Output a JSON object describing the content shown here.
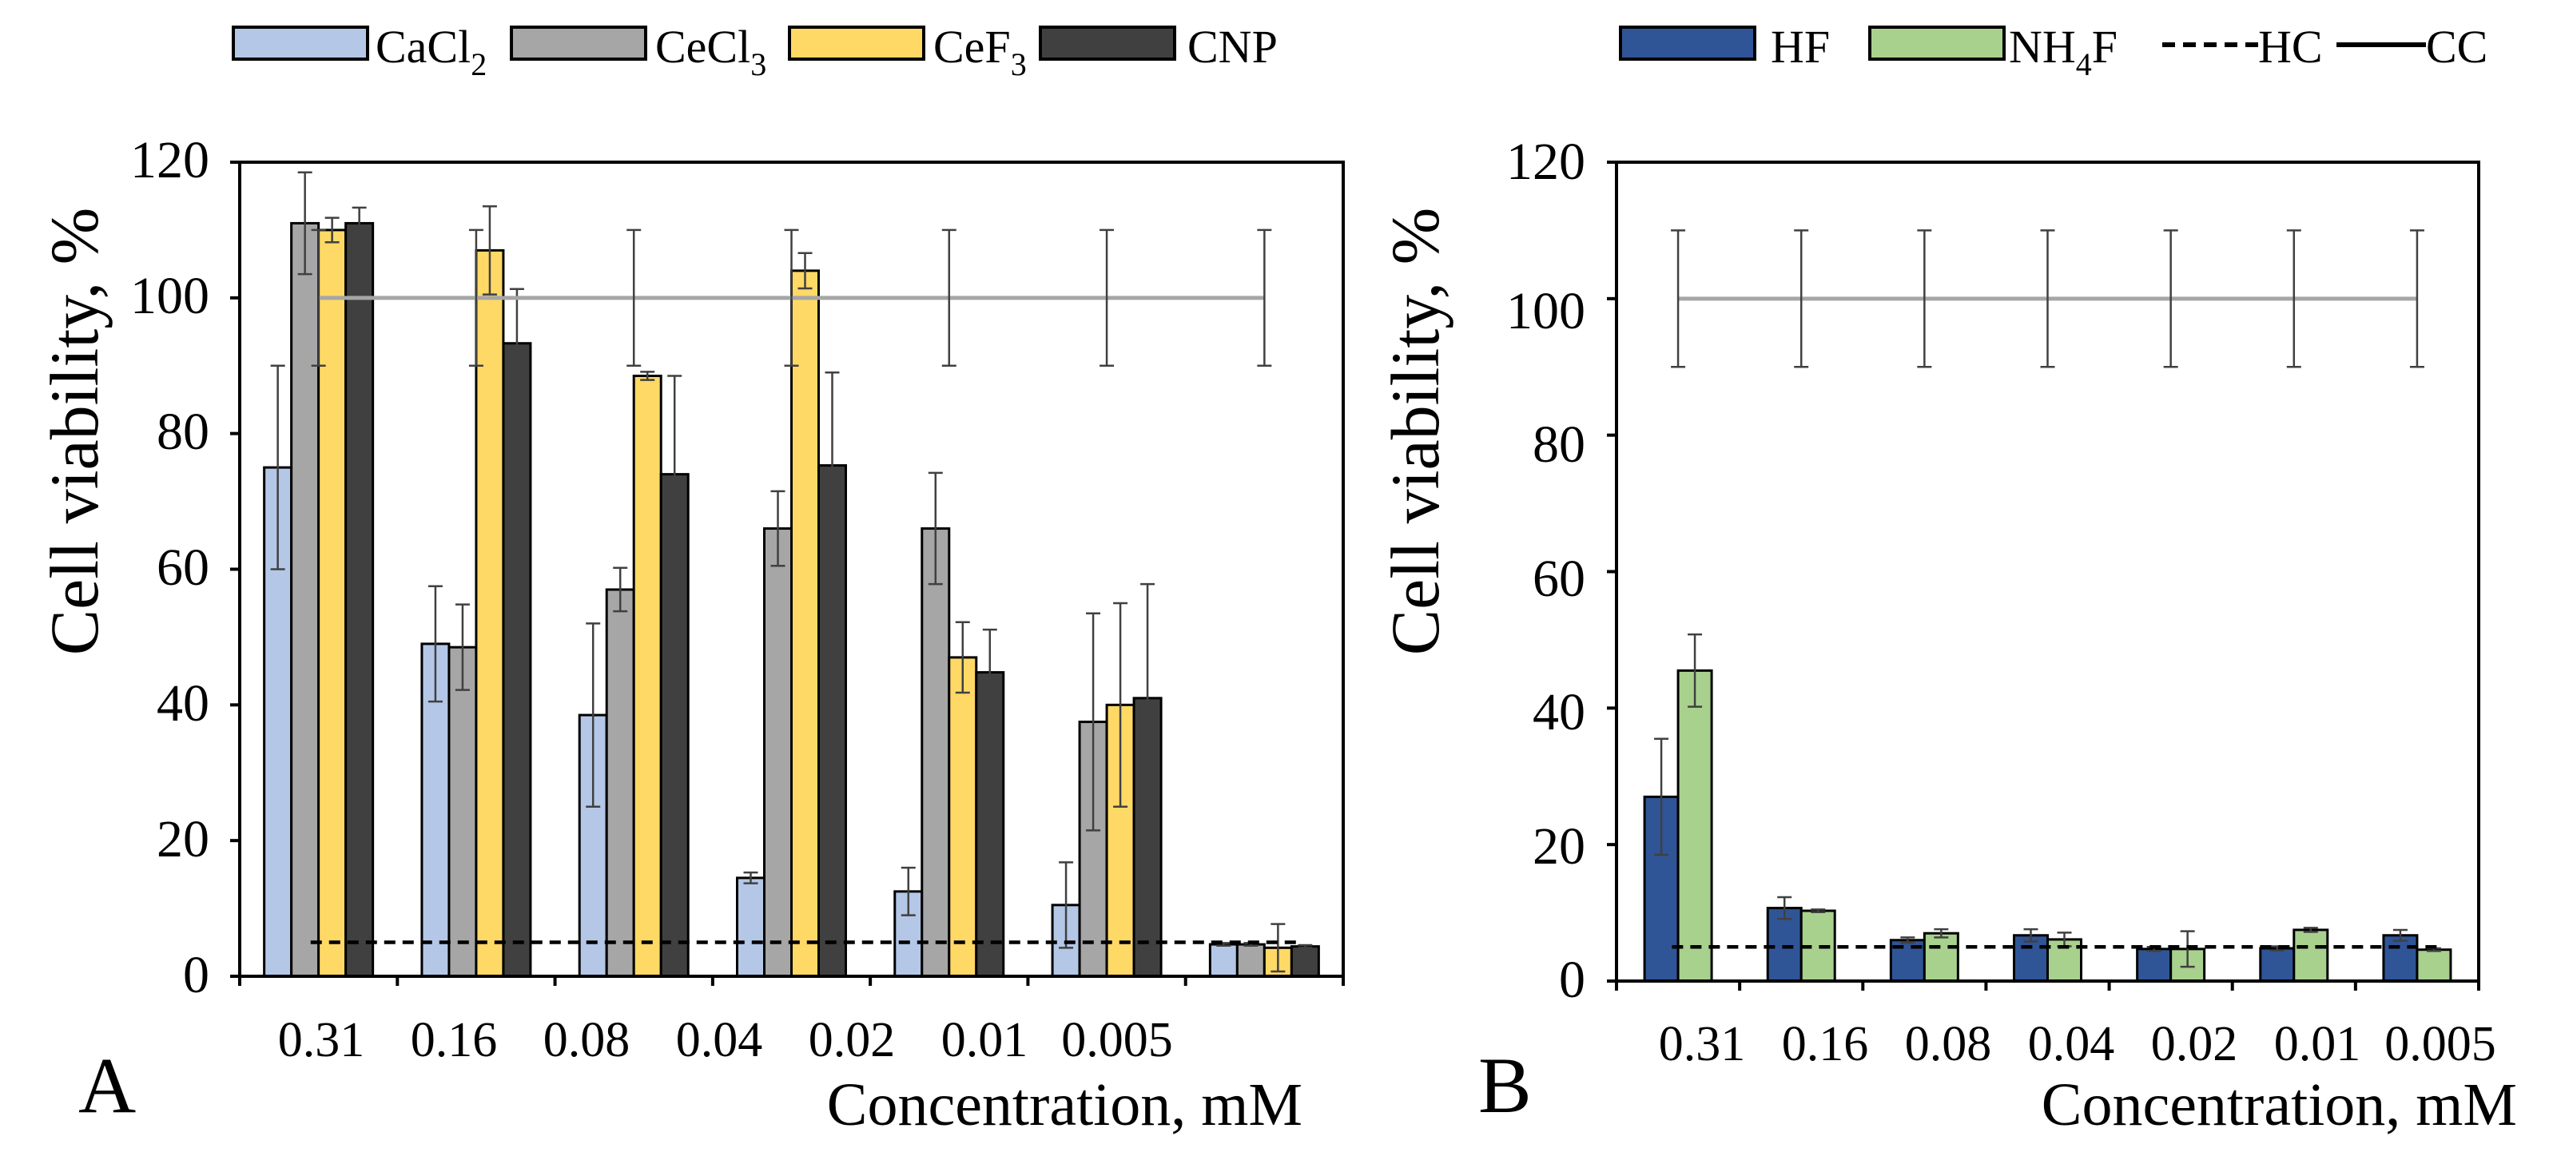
{
  "chart_data": [
    {
      "panel_label": "A",
      "type": "bar",
      "xlabel": "Concentration, mM",
      "ylabel": "Cell viability, %",
      "ylim": [
        0,
        120
      ],
      "yticks": [
        "0",
        "20",
        "40",
        "60",
        "80",
        "100",
        "120"
      ],
      "categories": [
        "0.31",
        "0.16",
        "0.08",
        "0.04",
        "0.02",
        "0.01",
        "0.005"
      ],
      "series": [
        {
          "name": "CaCl",
          "sub": "2",
          "color": "#b4c7e7",
          "values": [
            75,
            49,
            38.5,
            14.5,
            12.5,
            10.5,
            4.7
          ],
          "errors": [
            15,
            8.5,
            13.5,
            0.8,
            3.5,
            6.3,
            0.2
          ]
        },
        {
          "name": "CeCl",
          "sub": "3",
          "color": "#a6a6a6",
          "values": [
            111,
            48.5,
            57,
            66,
            66,
            37.5,
            4.7
          ],
          "errors": [
            7.5,
            6.3,
            3.2,
            5.5,
            8.2,
            16,
            0.2
          ]
        },
        {
          "name": "CeF",
          "sub": "3",
          "color": "#ffd966",
          "values": [
            110,
            107,
            88.5,
            104,
            47,
            40,
            4.2
          ],
          "errors": [
            1.8,
            6.5,
            0.6,
            2.6,
            5.2,
            15,
            3.5
          ]
        },
        {
          "name": "CNP",
          "sub": "",
          "color": "#404040",
          "values": [
            111,
            93.3,
            74,
            75.3,
            44.8,
            41,
            4.4
          ],
          "errors": [
            2.3,
            8,
            14.5,
            13.7,
            6.3,
            16.8,
            0.2
          ]
        }
      ],
      "reference_lines": [
        {
          "name": "CC",
          "style": "solid",
          "color": "#a6a6a6",
          "value": 100,
          "error": 10
        },
        {
          "name": "HC",
          "style": "dashed",
          "color": "#000000",
          "value": 5
        }
      ],
      "legend_position": "top"
    },
    {
      "panel_label": "B",
      "type": "bar",
      "xlabel": "Concentration, mM",
      "ylabel": "Cell viability, %",
      "ylim": [
        0,
        120
      ],
      "yticks": [
        "0",
        "20",
        "40",
        "60",
        "80",
        "100",
        "120"
      ],
      "categories": [
        "0.31",
        "0.16",
        "0.08",
        "0.04",
        "0.02",
        "0.01",
        "0.005"
      ],
      "series": [
        {
          "name": "HF",
          "sub": "",
          "color": "#2f5597",
          "values": [
            27,
            10.7,
            6,
            6.7,
            4.7,
            4.8,
            6.7
          ],
          "errors": [
            8.5,
            1.6,
            0.4,
            0.9,
            0.3,
            0.3,
            0.8
          ]
        },
        {
          "name": "NH",
          "sub": "4",
          "suffix": "F",
          "color": "#a9d18e",
          "values": [
            45.5,
            10.3,
            7,
            6.1,
            4.7,
            7.5,
            4.6
          ],
          "errors": [
            5.3,
            0.2,
            0.6,
            1,
            2.6,
            0.3,
            0.2
          ]
        }
      ],
      "reference_lines": [
        {
          "name": "CC",
          "style": "solid",
          "color": "#a6a6a6",
          "value": 100,
          "error": 10
        },
        {
          "name": "HC",
          "style": "dashed",
          "color": "#000000",
          "value": 5
        }
      ],
      "legend_position": "top"
    }
  ]
}
